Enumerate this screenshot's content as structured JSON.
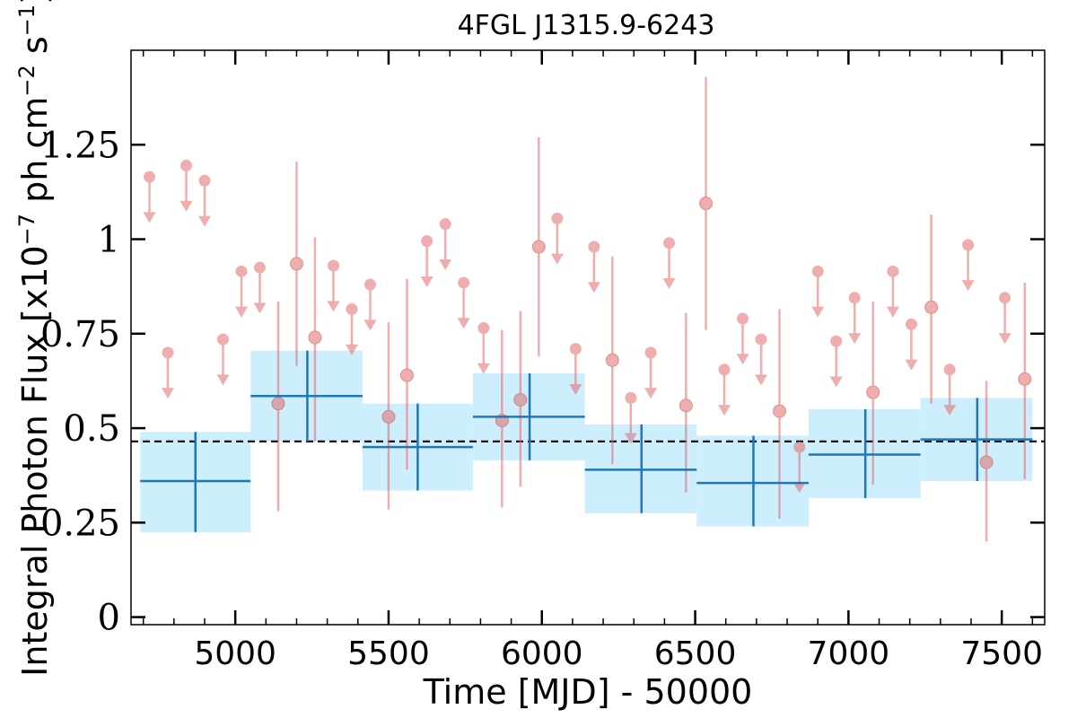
{
  "chart_data": {
    "type": "scatter",
    "title": "4FGL J1315.9-6243",
    "xlabel": "Time [MJD] - 50000",
    "ylabel_base": "Integral Photon Flux [x10",
    "ylabel_exp1": "−7",
    "ylabel_mid": " ph cm",
    "ylabel_exp2": "−2",
    "ylabel_s": " s",
    "ylabel_exp3": "−1",
    "ylabel_end": "]",
    "xlim": [
      4660,
      7640
    ],
    "ylim": [
      -0.02,
      1.5
    ],
    "x_ticks": [
      5000,
      5500,
      6000,
      6500,
      7000,
      7500
    ],
    "x_tick_labels": [
      "5000",
      "5500",
      "6000",
      "6500",
      "7000",
      "7500"
    ],
    "y_ticks": [
      0,
      0.25,
      0.5,
      0.75,
      1,
      1.25
    ],
    "y_tick_labels": [
      "0",
      "0.25",
      "0.5",
      "0.75",
      "1",
      "1.25"
    ],
    "mean_flux": 0.465,
    "colors": {
      "monthly": "#e36b6b",
      "bin_line": "#1f77b4",
      "bin_fill": "#cdeefc",
      "mean_line": "#000000"
    },
    "binned": [
      {
        "x0": 4690,
        "x1": 5050,
        "x": 4870,
        "y": 0.36,
        "ylo": 0.225,
        "yhi": 0.49
      },
      {
        "x0": 5050,
        "x1": 5415,
        "x": 5235,
        "y": 0.585,
        "ylo": 0.465,
        "yhi": 0.705
      },
      {
        "x0": 5415,
        "x1": 5775,
        "x": 5595,
        "y": 0.45,
        "ylo": 0.335,
        "yhi": 0.565
      },
      {
        "x0": 5775,
        "x1": 6140,
        "x": 5960,
        "y": 0.53,
        "ylo": 0.415,
        "yhi": 0.645
      },
      {
        "x0": 6140,
        "x1": 6505,
        "x": 6325,
        "y": 0.39,
        "ylo": 0.275,
        "yhi": 0.51
      },
      {
        "x0": 6505,
        "x1": 6870,
        "x": 6690,
        "y": 0.355,
        "ylo": 0.24,
        "yhi": 0.48
      },
      {
        "x0": 6870,
        "x1": 7235,
        "x": 7055,
        "y": 0.43,
        "ylo": 0.315,
        "yhi": 0.55
      },
      {
        "x0": 7235,
        "x1": 7600,
        "x": 7420,
        "y": 0.47,
        "ylo": 0.36,
        "yhi": 0.58
      }
    ],
    "detections": [
      {
        "x": 5140,
        "y": 0.565,
        "ylo": 0.28,
        "yhi": 0.835
      },
      {
        "x": 5200,
        "y": 0.935,
        "ylo": 0.665,
        "yhi": 1.205
      },
      {
        "x": 5260,
        "y": 0.74,
        "ylo": 0.465,
        "yhi": 1.005
      },
      {
        "x": 5500,
        "y": 0.53,
        "ylo": 0.285,
        "yhi": 0.78
      },
      {
        "x": 5560,
        "y": 0.64,
        "ylo": 0.39,
        "yhi": 0.895
      },
      {
        "x": 5870,
        "y": 0.52,
        "ylo": 0.29,
        "yhi": 0.76
      },
      {
        "x": 5930,
        "y": 0.575,
        "ylo": 0.345,
        "yhi": 0.81
      },
      {
        "x": 5990,
        "y": 0.98,
        "ylo": 0.69,
        "yhi": 1.27
      },
      {
        "x": 6230,
        "y": 0.68,
        "ylo": 0.405,
        "yhi": 0.955
      },
      {
        "x": 6470,
        "y": 0.56,
        "ylo": 0.33,
        "yhi": 0.805
      },
      {
        "x": 6535,
        "y": 1.095,
        "ylo": 0.76,
        "yhi": 1.43
      },
      {
        "x": 6775,
        "y": 0.545,
        "ylo": 0.26,
        "yhi": 0.815
      },
      {
        "x": 7080,
        "y": 0.595,
        "ylo": 0.35,
        "yhi": 0.835
      },
      {
        "x": 7270,
        "y": 0.82,
        "ylo": 0.565,
        "yhi": 1.065
      },
      {
        "x": 7450,
        "y": 0.41,
        "ylo": 0.2,
        "yhi": 0.625
      },
      {
        "x": 7575,
        "y": 0.63,
        "ylo": 0.365,
        "yhi": 0.885
      }
    ],
    "upper_limits": [
      {
        "x": 4720,
        "y": 1.165
      },
      {
        "x": 4780,
        "y": 0.7
      },
      {
        "x": 4840,
        "y": 1.195
      },
      {
        "x": 4900,
        "y": 1.155
      },
      {
        "x": 4960,
        "y": 0.735
      },
      {
        "x": 5020,
        "y": 0.915
      },
      {
        "x": 5080,
        "y": 0.925
      },
      {
        "x": 5320,
        "y": 0.93
      },
      {
        "x": 5380,
        "y": 0.815
      },
      {
        "x": 5440,
        "y": 0.88
      },
      {
        "x": 5625,
        "y": 0.995
      },
      {
        "x": 5685,
        "y": 1.04
      },
      {
        "x": 5745,
        "y": 0.885
      },
      {
        "x": 5810,
        "y": 0.765
      },
      {
        "x": 6050,
        "y": 1.055
      },
      {
        "x": 6110,
        "y": 0.71
      },
      {
        "x": 6170,
        "y": 0.98
      },
      {
        "x": 6290,
        "y": 0.58
      },
      {
        "x": 6355,
        "y": 0.7
      },
      {
        "x": 6415,
        "y": 0.99
      },
      {
        "x": 6595,
        "y": 0.655
      },
      {
        "x": 6655,
        "y": 0.79
      },
      {
        "x": 6715,
        "y": 0.735
      },
      {
        "x": 6840,
        "y": 0.45
      },
      {
        "x": 6900,
        "y": 0.915
      },
      {
        "x": 6960,
        "y": 0.73
      },
      {
        "x": 7020,
        "y": 0.845
      },
      {
        "x": 7145,
        "y": 0.915
      },
      {
        "x": 7205,
        "y": 0.775
      },
      {
        "x": 7330,
        "y": 0.655
      },
      {
        "x": 7390,
        "y": 0.985
      },
      {
        "x": 7510,
        "y": 0.845
      }
    ]
  }
}
